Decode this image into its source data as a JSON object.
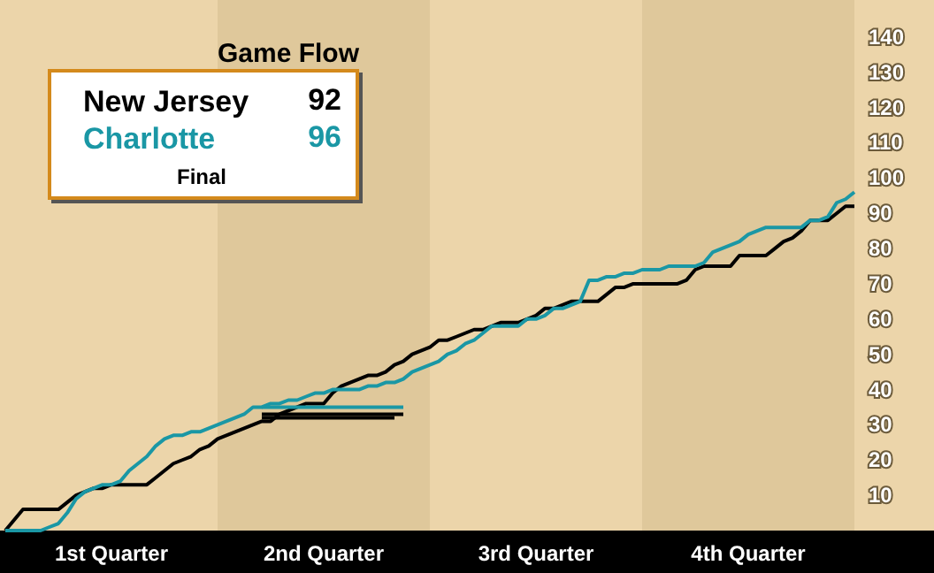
{
  "chart_data": {
    "type": "line",
    "title": "Game Flow",
    "annotations": [
      "92",
      "96",
      "Final"
    ],
    "categories": [
      null,
      null,
      null,
      null,
      null,
      null,
      null,
      null,
      null,
      null,
      null,
      null,
      "1st Quarter",
      null,
      null,
      null,
      null,
      null,
      null,
      null,
      null,
      null,
      null,
      null,
      null,
      null,
      null,
      null,
      null,
      null,
      null,
      null,
      null,
      null,
      null,
      null,
      "2nd Quarter",
      null,
      null,
      null,
      null,
      null,
      null,
      null,
      null,
      null,
      null,
      null,
      null,
      null,
      null,
      null,
      null,
      null,
      null,
      null,
      null,
      null,
      null,
      null,
      "3rd Quarter",
      null,
      null,
      null,
      null,
      null,
      null,
      null,
      null,
      null,
      null,
      null,
      null,
      null,
      null,
      null,
      null,
      null,
      null,
      null,
      null,
      null,
      null,
      null,
      "4th Quarter",
      null,
      null,
      null,
      null,
      null,
      null,
      null,
      null,
      null,
      null,
      null,
      null
    ],
    "ylim": [
      0,
      150
    ],
    "yticks": [
      10,
      20,
      30,
      40,
      50,
      60,
      70,
      80,
      90,
      100,
      110,
      120,
      130,
      140
    ],
    "series": [
      {
        "name": "New Jersey",
        "color": "#000000",
        "values": [
          0,
          3,
          6,
          6,
          6,
          6,
          6,
          8,
          10,
          11,
          12,
          12,
          13,
          13,
          13,
          13,
          13,
          15,
          17,
          19,
          20,
          21,
          23,
          24,
          26,
          27,
          28,
          29,
          30,
          31,
          31,
          33,
          34,
          35,
          36,
          36,
          36,
          39,
          41,
          42,
          43,
          44,
          44,
          45,
          47,
          48,
          50,
          51,
          52,
          54,
          54,
          55,
          56,
          57,
          57,
          58,
          59,
          59,
          59,
          60,
          61,
          63,
          63,
          64,
          65,
          65,
          65,
          65,
          67,
          69,
          69,
          70,
          70,
          70,
          70,
          70,
          70,
          71,
          74,
          75,
          75,
          75,
          75,
          78,
          78,
          78,
          78,
          80,
          82,
          83,
          85,
          88,
          88,
          88,
          90,
          92,
          92
        ]
      },
      {
        "name": "Charlotte",
        "color": "#1a97a5",
        "values": [
          0,
          0,
          0,
          0,
          0,
          1,
          2,
          5,
          9,
          11,
          12,
          13,
          13,
          14,
          17,
          19,
          21,
          24,
          26,
          27,
          27,
          28,
          28,
          29,
          30,
          31,
          32,
          33,
          35,
          35,
          36,
          36,
          37,
          37,
          38,
          39,
          39,
          40,
          40,
          40,
          40,
          41,
          41,
          42,
          42,
          43,
          45,
          46,
          47,
          48,
          50,
          51,
          53,
          54,
          56,
          58,
          58,
          58,
          58,
          60,
          60,
          61,
          63,
          63,
          64,
          65,
          71,
          71,
          72,
          72,
          73,
          73,
          74,
          74,
          74,
          75,
          75,
          75,
          75,
          76,
          79,
          80,
          81,
          82,
          84,
          85,
          86,
          86,
          86,
          86,
          86,
          88,
          88,
          89,
          93,
          94,
          96
        ]
      },
      {
        "color": "#000000",
        "values": [
          null,
          null,
          null,
          null,
          null,
          null,
          null,
          null,
          null,
          null,
          null,
          null,
          null,
          null,
          null,
          null,
          null,
          null,
          null,
          null,
          null,
          null,
          null,
          null,
          null,
          null,
          null,
          null,
          null,
          33,
          33,
          33,
          33,
          33,
          33,
          33,
          33,
          33,
          33,
          33,
          33,
          33,
          33,
          33,
          33,
          33,
          null,
          null,
          null,
          null,
          null,
          null,
          null,
          null,
          null,
          null,
          null,
          null,
          null,
          null,
          null,
          null,
          null,
          null,
          null,
          null,
          null,
          null,
          null,
          null,
          null,
          null,
          null,
          null,
          null,
          null,
          null,
          null,
          null,
          null,
          null,
          null,
          null,
          null,
          null,
          null,
          null,
          null,
          null,
          null,
          null,
          null,
          null,
          null,
          null,
          null,
          null
        ]
      },
      {
        "color": "#000000",
        "values": [
          null,
          null,
          null,
          null,
          null,
          null,
          null,
          null,
          null,
          null,
          null,
          null,
          null,
          null,
          null,
          null,
          null,
          null,
          null,
          null,
          null,
          null,
          null,
          null,
          null,
          null,
          null,
          null,
          null,
          32,
          32,
          32,
          32,
          32,
          32,
          32,
          32,
          32,
          32,
          32,
          32,
          32,
          32,
          32,
          32,
          null,
          null,
          null,
          null,
          null,
          null,
          null,
          null,
          null,
          null,
          null,
          null,
          null,
          null,
          null,
          null,
          null,
          null,
          null,
          null,
          null,
          null,
          null,
          null,
          null,
          null,
          null,
          null,
          null,
          null,
          null,
          null,
          null,
          null,
          null,
          null,
          null,
          null,
          null,
          null,
          null,
          null,
          null,
          null,
          null,
          null,
          null,
          null,
          null,
          null,
          null,
          null
        ]
      },
      {
        "color": "#1a97a5",
        "values": [
          null,
          null,
          null,
          null,
          null,
          null,
          null,
          null,
          null,
          null,
          null,
          null,
          null,
          null,
          null,
          null,
          null,
          null,
          null,
          null,
          null,
          null,
          null,
          null,
          null,
          null,
          null,
          null,
          null,
          35,
          35,
          35,
          35,
          35,
          35,
          35,
          35,
          35,
          35,
          35,
          35,
          35,
          35,
          35,
          35,
          35,
          null,
          null,
          null,
          null,
          null,
          null,
          null,
          null,
          null,
          null,
          null,
          null,
          null,
          null,
          null,
          null,
          null,
          null,
          null,
          null,
          null,
          null,
          null,
          null,
          null,
          null,
          null,
          null,
          null,
          null,
          null,
          null,
          null,
          null,
          null,
          null,
          null,
          null,
          null,
          null,
          null,
          null,
          null,
          null,
          null,
          null,
          null,
          null,
          null,
          null,
          null
        ]
      }
    ],
    "legend": "top left",
    "marker": "none",
    "line_style": "solid",
    "grid": false
  }
}
